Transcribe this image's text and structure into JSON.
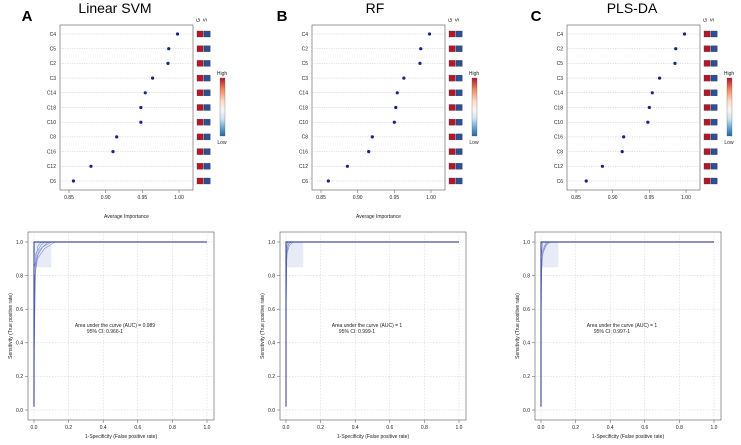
{
  "chart_data": [
    {
      "type": "scatter",
      "panel": "A",
      "title": "Linear SVM",
      "xlabel": "Average Importance",
      "xlim": [
        0.85,
        1.0
      ],
      "xticks": [
        "0.85",
        "0.90",
        "0.95",
        "1.00"
      ],
      "features": [
        "C4",
        "C5",
        "C2",
        "C3",
        "C14",
        "C18",
        "C10",
        "C8",
        "C16",
        "C12",
        "C6"
      ],
      "values": [
        0.998,
        0.986,
        0.985,
        0.964,
        0.954,
        0.948,
        0.948,
        0.915,
        0.91,
        0.88,
        0.856
      ],
      "group_labels": [
        "G",
        "S"
      ],
      "heat": [
        [
          1,
          0
        ],
        [
          1,
          0
        ],
        [
          1,
          0
        ],
        [
          1,
          0
        ],
        [
          1,
          0
        ],
        [
          1,
          0
        ],
        [
          1,
          0
        ],
        [
          1,
          0
        ],
        [
          1,
          0
        ],
        [
          1,
          0
        ],
        [
          1,
          0
        ]
      ],
      "legend": {
        "high": "High",
        "low": "Low"
      }
    },
    {
      "type": "scatter",
      "panel": "B",
      "title": "RF",
      "xlabel": "Average Importance",
      "xlim": [
        0.85,
        1.0
      ],
      "xticks": [
        "0.85",
        "0.90",
        "0.95",
        "1.00"
      ],
      "features": [
        "C4",
        "C2",
        "C5",
        "C3",
        "C14",
        "C18",
        "C10",
        "C8",
        "C16",
        "C12",
        "C6"
      ],
      "values": [
        0.998,
        0.986,
        0.985,
        0.963,
        0.954,
        0.952,
        0.95,
        0.92,
        0.915,
        0.886,
        0.86
      ],
      "group_labels": [
        "G",
        "S"
      ],
      "heat": [
        [
          1,
          0
        ],
        [
          1,
          0
        ],
        [
          1,
          0
        ],
        [
          1,
          0
        ],
        [
          1,
          0
        ],
        [
          1,
          0
        ],
        [
          1,
          0
        ],
        [
          1,
          0
        ],
        [
          1,
          0
        ],
        [
          1,
          0
        ],
        [
          1,
          0
        ]
      ],
      "legend": {
        "high": "High",
        "low": "Low"
      }
    },
    {
      "type": "scatter",
      "panel": "C",
      "title": "PLS-DA",
      "xlabel": "",
      "xlim": [
        0.85,
        1.0
      ],
      "xticks": [
        "0.85",
        "0.90",
        "0.95",
        "1.00"
      ],
      "features": [
        "C4",
        "C2",
        "C5",
        "C3",
        "C14",
        "C18",
        "C10",
        "C16",
        "C8",
        "C12",
        "C6"
      ],
      "values": [
        0.998,
        0.986,
        0.985,
        0.964,
        0.954,
        0.95,
        0.948,
        0.915,
        0.913,
        0.886,
        0.864
      ],
      "group_labels": [
        "G",
        "S"
      ],
      "heat": [
        [
          1,
          0
        ],
        [
          1,
          0
        ],
        [
          1,
          0
        ],
        [
          1,
          0
        ],
        [
          1,
          0
        ],
        [
          1,
          0
        ],
        [
          1,
          0
        ],
        [
          1,
          0
        ],
        [
          1,
          0
        ],
        [
          1,
          0
        ],
        [
          1,
          0
        ]
      ],
      "legend": {
        "high": "High",
        "low": "Low"
      }
    },
    {
      "type": "line",
      "panel": "A",
      "xlabel": "1-Specificity (False positive rate)",
      "ylabel": "Sensitivity (True positive rate)",
      "xlim": [
        0.0,
        1.0
      ],
      "ylim": [
        0.0,
        1.0
      ],
      "ticks": [
        "0.0",
        "0.2",
        "0.4",
        "0.6",
        "0.8",
        "1.0"
      ],
      "annotation": [
        "Area under the curve (AUC) = 0.989",
        "95% CI: 0.966-1"
      ],
      "series": [
        {
          "values": [
            [
              0,
              0.02
            ],
            [
              0,
              0.85
            ],
            [
              0.02,
              0.92
            ],
            [
              0.05,
              0.97
            ],
            [
              0.1,
              1
            ],
            [
              1,
              1
            ]
          ]
        },
        {
          "values": [
            [
              0,
              0.1
            ],
            [
              0.005,
              0.8
            ],
            [
              0.02,
              0.9
            ],
            [
              0.06,
              0.96
            ],
            [
              0.12,
              1
            ],
            [
              1,
              1
            ]
          ]
        },
        {
          "values": [
            [
              0,
              0.3
            ],
            [
              0.01,
              0.87
            ],
            [
              0.03,
              0.95
            ],
            [
              0.08,
              1
            ],
            [
              1,
              1
            ]
          ]
        },
        {
          "values": [
            [
              0,
              0.5
            ],
            [
              0.01,
              0.93
            ],
            [
              0.04,
              0.98
            ],
            [
              0.06,
              1
            ],
            [
              1,
              1
            ]
          ]
        },
        {
          "values": [
            [
              0,
              0.7
            ],
            [
              0.02,
              0.97
            ],
            [
              0.04,
              1
            ],
            [
              1,
              1
            ]
          ]
        }
      ]
    },
    {
      "type": "line",
      "panel": "B",
      "xlabel": "1-Specificity (False positive rate)",
      "ylabel": "Sensitivity (True positive rate)",
      "xlim": [
        0.0,
        1.0
      ],
      "ylim": [
        0.0,
        1.0
      ],
      "ticks": [
        "0.0",
        "0.2",
        "0.4",
        "0.6",
        "0.8",
        "1.0"
      ],
      "annotation": [
        "Area under the curve (AUC) = 1",
        "95% CI: 0.999-1"
      ],
      "series": [
        {
          "values": [
            [
              0,
              0.55
            ],
            [
              0.005,
              0.93
            ],
            [
              0.02,
              0.98
            ],
            [
              0.04,
              1
            ],
            [
              1,
              1
            ]
          ]
        },
        {
          "values": [
            [
              0,
              0.7
            ],
            [
              0.005,
              0.95
            ],
            [
              0.015,
              0.99
            ],
            [
              0.03,
              1
            ],
            [
              1,
              1
            ]
          ]
        },
        {
          "values": [
            [
              0,
              0.85
            ],
            [
              0.01,
              0.97
            ],
            [
              0.02,
              1
            ],
            [
              1,
              1
            ]
          ]
        },
        {
          "values": [
            [
              0,
              0.95
            ],
            [
              0.01,
              1
            ],
            [
              1,
              1
            ]
          ]
        }
      ]
    },
    {
      "type": "line",
      "panel": "C",
      "xlabel": "1-Specificity (False positive rate)",
      "ylabel": "Sensitivity (True positive rate)",
      "xlim": [
        0.0,
        1.0
      ],
      "ylim": [
        0.0,
        1.0
      ],
      "ticks": [
        "0.0",
        "0.2",
        "0.4",
        "0.6",
        "0.8",
        "1.0"
      ],
      "annotation": [
        "Area under the curve (AUC) = 1",
        "95% CI: 0.997-1"
      ],
      "series": [
        {
          "values": [
            [
              0,
              0.02
            ],
            [
              0,
              0.85
            ],
            [
              0.01,
              0.93
            ],
            [
              0.03,
              0.98
            ],
            [
              0.05,
              1
            ],
            [
              1,
              1
            ]
          ]
        },
        {
          "values": [
            [
              0,
              0.5
            ],
            [
              0.005,
              0.9
            ],
            [
              0.02,
              0.97
            ],
            [
              0.04,
              1
            ],
            [
              1,
              1
            ]
          ]
        },
        {
          "values": [
            [
              0,
              0.75
            ],
            [
              0.01,
              0.95
            ],
            [
              0.03,
              1
            ],
            [
              1,
              1
            ]
          ]
        },
        {
          "values": [
            [
              0,
              0.9
            ],
            [
              0.01,
              1
            ],
            [
              1,
              1
            ]
          ]
        }
      ]
    }
  ]
}
